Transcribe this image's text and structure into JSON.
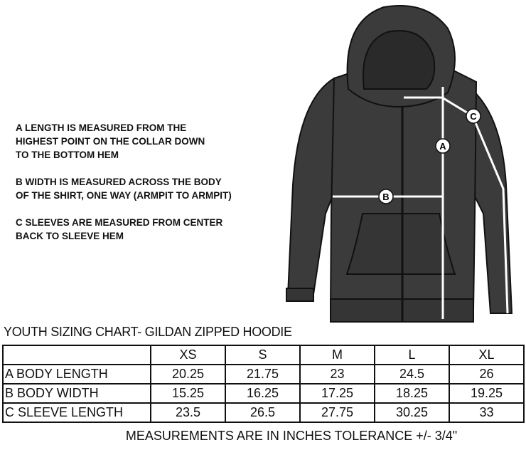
{
  "notes": [
    "A  LENGTH IS MEASURED FROM THE\nHIGHEST POINT ON THE COLLAR DOWN\nTO THE BOTTOM HEM",
    "B  WIDTH IS MEASURED ACROSS THE BODY\nOF THE SHIRT, ONE WAY (ARMPIT TO ARMPIT)",
    "C  SLEEVES ARE MEASURED FROM CENTER\nBACK TO SLEEVE HEM"
  ],
  "diagram": {
    "markers": [
      "A",
      "B",
      "C"
    ],
    "garment_color": "#3b3b3b",
    "line_color": "#ffffff"
  },
  "chart_title": "YOUTH SIZING CHART- GILDAN ZIPPED HOODIE",
  "table": {
    "headers": [
      "",
      "XS",
      "S",
      "M",
      "L",
      "XL"
    ],
    "rows": [
      [
        "A BODY LENGTH",
        "20.25",
        "21.75",
        "23",
        "24.5",
        "26"
      ],
      [
        "B BODY WIDTH",
        "15.25",
        "16.25",
        "17.25",
        "18.25",
        "19.25"
      ],
      [
        "C SLEEVE LENGTH",
        "23.5",
        "26.5",
        "27.75",
        "30.25",
        "33"
      ]
    ]
  },
  "footer": "MEASUREMENTS ARE IN INCHES  TOLERANCE +/- 3/4\""
}
